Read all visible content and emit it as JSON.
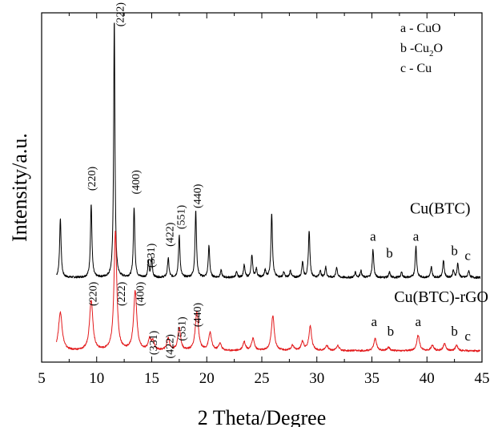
{
  "chart_data": {
    "type": "line",
    "xlabel": "2 Theta/Degree",
    "ylabel": "Intensity/a.u.",
    "xlim": [
      5,
      45
    ],
    "ylim": [
      0,
      100
    ],
    "x_ticks": [
      "5",
      "10",
      "15",
      "20",
      "25",
      "30",
      "35",
      "40",
      "45"
    ],
    "y_ticks_shown": false,
    "grid": false,
    "legend": {
      "placement": "top-right",
      "entries": [
        {
          "key": "a",
          "sep": " - ",
          "formula": "CuO",
          "sub": "",
          "tail": ""
        },
        {
          "key": "b",
          "sep": " -",
          "formula": "Cu",
          "sub": "2",
          "tail": "O"
        },
        {
          "key": "c",
          "sep": " - ",
          "formula": "Cu",
          "sub": "",
          "tail": ""
        }
      ]
    },
    "series": [
      {
        "name": "Cu(BTC)",
        "color": "#000000",
        "baseline": 24.2,
        "noise": 0.3,
        "peaks": [
          {
            "x": 6.7,
            "h": 17.0,
            "w": 0.08
          },
          {
            "x": 9.5,
            "h": 21.0,
            "w": 0.08
          },
          {
            "x": 11.6,
            "h": 74.0,
            "w": 0.07
          },
          {
            "x": 13.4,
            "h": 20.0,
            "w": 0.08
          },
          {
            "x": 14.7,
            "h": 4.5,
            "w": 0.07
          },
          {
            "x": 15.0,
            "h": 5.5,
            "w": 0.07
          },
          {
            "x": 16.5,
            "h": 5.5,
            "w": 0.08
          },
          {
            "x": 17.5,
            "h": 12.0,
            "w": 0.08
          },
          {
            "x": 19.0,
            "h": 19.0,
            "w": 0.08
          },
          {
            "x": 20.2,
            "h": 9.0,
            "w": 0.08
          },
          {
            "x": 21.3,
            "h": 2.0,
            "w": 0.08
          },
          {
            "x": 22.7,
            "h": 1.5,
            "w": 0.08
          },
          {
            "x": 23.4,
            "h": 3.5,
            "w": 0.08
          },
          {
            "x": 24.1,
            "h": 6.5,
            "w": 0.08
          },
          {
            "x": 24.5,
            "h": 2.5,
            "w": 0.08
          },
          {
            "x": 25.3,
            "h": 2.0,
            "w": 0.08
          },
          {
            "x": 25.9,
            "h": 18.5,
            "w": 0.08
          },
          {
            "x": 27.0,
            "h": 1.5,
            "w": 0.08
          },
          {
            "x": 27.6,
            "h": 2.0,
            "w": 0.08
          },
          {
            "x": 28.7,
            "h": 4.5,
            "w": 0.08
          },
          {
            "x": 29.3,
            "h": 13.5,
            "w": 0.08
          },
          {
            "x": 30.3,
            "h": 2.0,
            "w": 0.08
          },
          {
            "x": 30.8,
            "h": 3.0,
            "w": 0.08
          },
          {
            "x": 31.8,
            "h": 3.0,
            "w": 0.08
          },
          {
            "x": 33.5,
            "h": 1.5,
            "w": 0.08
          },
          {
            "x": 34.0,
            "h": 2.0,
            "w": 0.08
          },
          {
            "x": 35.1,
            "h": 8.0,
            "w": 0.08
          },
          {
            "x": 36.6,
            "h": 1.5,
            "w": 0.08
          },
          {
            "x": 37.7,
            "h": 1.5,
            "w": 0.08
          },
          {
            "x": 39.0,
            "h": 9.0,
            "w": 0.08
          },
          {
            "x": 40.4,
            "h": 3.0,
            "w": 0.08
          },
          {
            "x": 41.5,
            "h": 5.0,
            "w": 0.08
          },
          {
            "x": 42.4,
            "h": 2.0,
            "w": 0.08
          },
          {
            "x": 42.8,
            "h": 4.0,
            "w": 0.08
          },
          {
            "x": 43.8,
            "h": 2.0,
            "w": 0.08
          }
        ]
      },
      {
        "name": "Cu(BTC)-rGO",
        "color": "#e31a1c",
        "baseline": 3.2,
        "noise": 0.25,
        "peaks": [
          {
            "x": 6.7,
            "h": 11.0,
            "w": 0.2
          },
          {
            "x": 9.5,
            "h": 14.5,
            "w": 0.18
          },
          {
            "x": 11.7,
            "h": 34.0,
            "w": 0.15
          },
          {
            "x": 13.5,
            "h": 17.0,
            "w": 0.17
          },
          {
            "x": 14.8,
            "h": 3.0,
            "w": 0.15
          },
          {
            "x": 15.1,
            "h": 2.5,
            "w": 0.15
          },
          {
            "x": 16.5,
            "h": 3.5,
            "w": 0.15
          },
          {
            "x": 17.5,
            "h": 6.5,
            "w": 0.15
          },
          {
            "x": 19.1,
            "h": 11.0,
            "w": 0.17
          },
          {
            "x": 20.3,
            "h": 5.0,
            "w": 0.16
          },
          {
            "x": 21.2,
            "h": 2.0,
            "w": 0.15
          },
          {
            "x": 23.4,
            "h": 2.5,
            "w": 0.15
          },
          {
            "x": 24.2,
            "h": 3.5,
            "w": 0.15
          },
          {
            "x": 26.0,
            "h": 10.0,
            "w": 0.16
          },
          {
            "x": 27.8,
            "h": 1.5,
            "w": 0.15
          },
          {
            "x": 28.7,
            "h": 2.5,
            "w": 0.15
          },
          {
            "x": 29.4,
            "h": 7.0,
            "w": 0.15
          },
          {
            "x": 30.9,
            "h": 1.5,
            "w": 0.15
          },
          {
            "x": 31.9,
            "h": 1.5,
            "w": 0.15
          },
          {
            "x": 35.3,
            "h": 3.5,
            "w": 0.15
          },
          {
            "x": 36.5,
            "h": 1.0,
            "w": 0.15
          },
          {
            "x": 39.2,
            "h": 4.5,
            "w": 0.15
          },
          {
            "x": 40.5,
            "h": 1.5,
            "w": 0.15
          },
          {
            "x": 41.6,
            "h": 2.0,
            "w": 0.15
          },
          {
            "x": 42.7,
            "h": 1.5,
            "w": 0.15
          }
        ]
      }
    ],
    "annotations": {
      "plane_labels": [
        {
          "text": "(220)",
          "x": 9.5,
          "y": 56
        },
        {
          "text": "(222)",
          "x": 12.1,
          "y": 103
        },
        {
          "text": "(400)",
          "x": 13.5,
          "y": 55
        },
        {
          "text": "(331)",
          "x": 14.9,
          "y": 34
        },
        {
          "text": "(422)",
          "x": 16.6,
          "y": 40
        },
        {
          "text": "(551)",
          "x": 17.6,
          "y": 45
        },
        {
          "text": "(440)",
          "x": 19.1,
          "y": 51
        },
        {
          "text": "(220)",
          "x": 9.6,
          "y": 23
        },
        {
          "text": "(222)",
          "x": 12.2,
          "y": 23
        },
        {
          "text": "(400)",
          "x": 13.9,
          "y": 23
        },
        {
          "text": "(331)",
          "x": 15.1,
          "y": 9
        },
        {
          "text": "(422)",
          "x": 16.6,
          "y": 8
        },
        {
          "text": "(551)",
          "x": 17.7,
          "y": 13
        },
        {
          "text": "(440)",
          "x": 19.1,
          "y": 17
        }
      ],
      "phase_marks": [
        {
          "text": "a",
          "x": 35.1,
          "y": 34.8
        },
        {
          "text": "b",
          "x": 36.6,
          "y": 29.9
        },
        {
          "text": "a",
          "x": 39.0,
          "y": 34.8
        },
        {
          "text": "b",
          "x": 42.5,
          "y": 30.6
        },
        {
          "text": "c",
          "x": 43.7,
          "y": 29.2
        },
        {
          "text": "a",
          "x": 35.2,
          "y": 10.3
        },
        {
          "text": "b",
          "x": 36.7,
          "y": 7.6
        },
        {
          "text": "a",
          "x": 39.2,
          "y": 10.3
        },
        {
          "text": "b",
          "x": 42.5,
          "y": 7.6
        },
        {
          "text": "c",
          "x": 43.7,
          "y": 6.2
        }
      ],
      "series_labels": [
        {
          "text": "Cu(BTC)",
          "x": 41.2,
          "y": 42.6
        },
        {
          "text": "Cu(BTC)-rGO",
          "x": 41.3,
          "y": 17.2
        }
      ]
    }
  }
}
